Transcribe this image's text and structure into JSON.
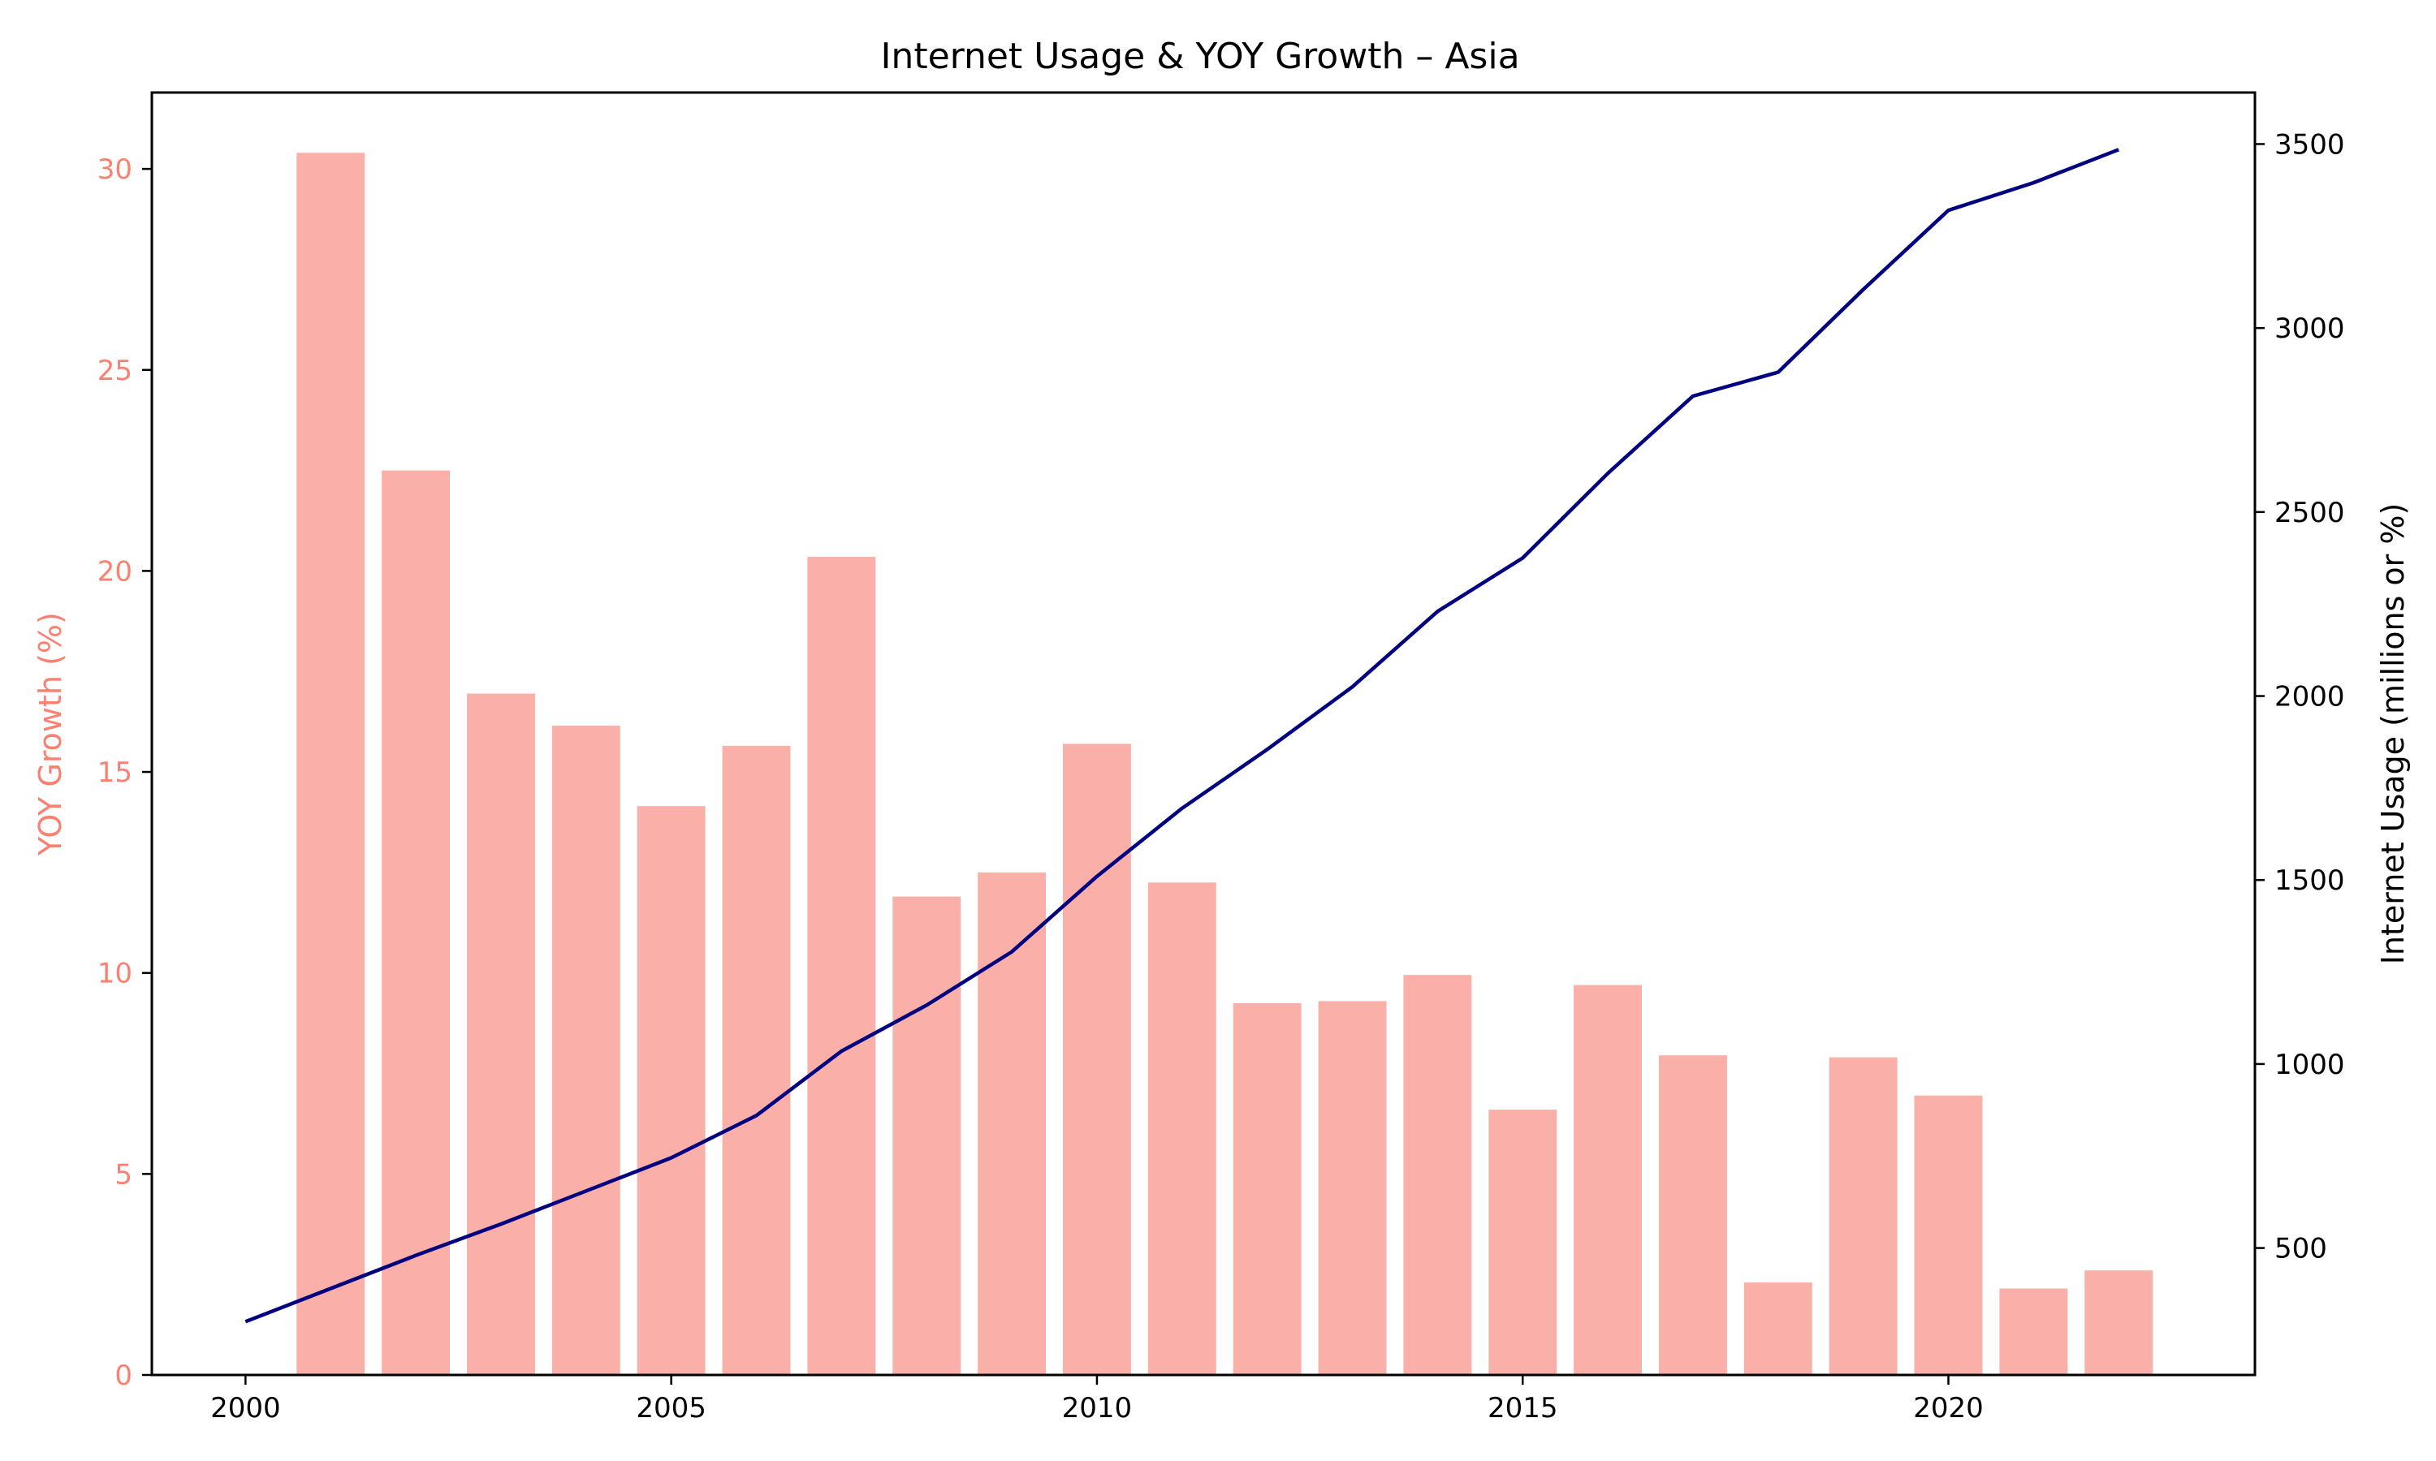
{
  "chart_data": {
    "type": "bar+line",
    "title": "Internet Usage & YOY Growth – Asia",
    "xlabel": "",
    "x": [
      2000,
      2001,
      2002,
      2003,
      2004,
      2005,
      2006,
      2007,
      2008,
      2009,
      2010,
      2011,
      2012,
      2013,
      2014,
      2015,
      2016,
      2017,
      2018,
      2019,
      2020,
      2021,
      2022
    ],
    "xlim": [
      1998.9,
      2023.6
    ],
    "xticks": [
      2000,
      2005,
      2010,
      2015,
      2020
    ],
    "xtick_labels": [
      "2000",
      "2005",
      "2010",
      "2015",
      "2020"
    ],
    "left_axis": {
      "label": "YOY Growth (%)",
      "color": "#fa8072",
      "ylim": [
        0,
        31.9
      ],
      "ticks": [
        0,
        5,
        10,
        15,
        20,
        25,
        30
      ],
      "tick_labels": [
        "0",
        "5",
        "10",
        "15",
        "20",
        "25",
        "30"
      ]
    },
    "right_axis": {
      "label": "Internet Usage (millions or %)",
      "color": "#000000",
      "ylim": [
        155,
        3640
      ],
      "ticks": [
        500,
        1000,
        1500,
        2000,
        2500,
        3000,
        3500
      ],
      "tick_labels": [
        "500",
        "1000",
        "1500",
        "2000",
        "2500",
        "3000",
        "3500"
      ]
    },
    "series": [
      {
        "kind": "bar",
        "axis": "left",
        "color": "#fab0a8",
        "x": [
          2001,
          2002,
          2003,
          2004,
          2005,
          2006,
          2007,
          2008,
          2009,
          2010,
          2011,
          2012,
          2013,
          2014,
          2015,
          2016,
          2017,
          2018,
          2019,
          2020,
          2021,
          2022
        ],
        "values": [
          30.4,
          22.5,
          16.95,
          16.15,
          14.15,
          15.65,
          20.35,
          11.9,
          12.5,
          15.7,
          12.25,
          9.25,
          9.3,
          9.95,
          6.6,
          9.7,
          7.95,
          2.3,
          7.9,
          6.95,
          2.15,
          2.6
        ]
      },
      {
        "kind": "line",
        "axis": "right",
        "color": "#000080",
        "x": [
          2000,
          2001,
          2002,
          2003,
          2004,
          2005,
          2006,
          2007,
          2008,
          2009,
          2010,
          2011,
          2012,
          2013,
          2014,
          2015,
          2016,
          2017,
          2018,
          2019,
          2020,
          2021,
          2022
        ],
        "values": [
          300,
          390,
          480,
          565,
          655,
          745,
          860,
          1035,
          1160,
          1305,
          1510,
          1695,
          1855,
          2025,
          2230,
          2375,
          2605,
          2815,
          2880,
          3105,
          3320,
          3395,
          3485
        ]
      }
    ]
  }
}
